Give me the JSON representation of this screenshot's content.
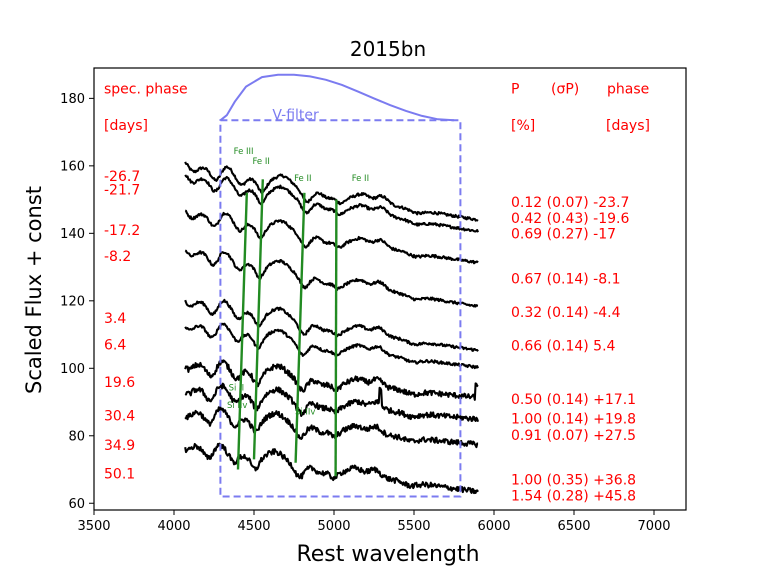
{
  "chart_data": {
    "type": "line",
    "title": "2015bn",
    "xlabel": "Rest wavelength",
    "ylabel": "Scaled Flux + const",
    "xlim": [
      3500,
      7200
    ],
    "ylim": [
      58,
      189
    ],
    "xticks": [
      3500,
      4000,
      4500,
      5000,
      5500,
      6000,
      6500,
      7000
    ],
    "yticks": [
      60,
      80,
      100,
      120,
      140,
      160,
      180
    ],
    "colors": {
      "text": "#ff0000",
      "lines": "#228b22",
      "filter": "#7b7bf0",
      "spectra": "#000000"
    },
    "left_header": [
      "spec. phase",
      "[days]"
    ],
    "left_phases": [
      {
        "label": "-26.7",
        "y": 155.5
      },
      {
        "label": "-21.7",
        "y": 151.5
      },
      {
        "label": "-17.2",
        "y": 139.5
      },
      {
        "label": "-8.2",
        "y": 131.8
      },
      {
        "label": "3.4",
        "y": 113.4
      },
      {
        "label": "6.4",
        "y": 105.5
      },
      {
        "label": "19.6",
        "y": 94.5
      },
      {
        "label": "30.4",
        "y": 84.5
      },
      {
        "label": "34.9",
        "y": 75.8
      },
      {
        "label": "50.1",
        "y": 67.3
      }
    ],
    "right_header": [
      "P",
      "(σP)",
      "phase",
      "[%]",
      "[days]"
    ],
    "right_rows": [
      {
        "label": "0.12 (0.07) -23.7",
        "y": 147.8
      },
      {
        "label": "0.42 (0.43) -19.6",
        "y": 143.1
      },
      {
        "label": "0.69 (0.27) -17",
        "y": 138.5
      },
      {
        "label": "0.67 (0.14) -8.1",
        "y": 125.1
      },
      {
        "label": "0.32 (0.14) -4.4",
        "y": 115.2
      },
      {
        "label": "0.66 (0.14) 5.4",
        "y": 105.2
      },
      {
        "label": "0.50 (0.14) +17.1",
        "y": 89.4
      },
      {
        "label": "1.00 (0.14) +19.8",
        "y": 83.6
      },
      {
        "label": "0.91 (0.07) +27.5",
        "y": 78.8
      },
      {
        "label": "1.00 (0.35) +36.8",
        "y": 65.6
      },
      {
        "label": "1.54 (0.28) +45.8",
        "y": 60.8
      }
    ],
    "filter_label": "V-filter",
    "filter_box": {
      "x0": 4290,
      "x1": 5790,
      "y0": 62,
      "y1": 173.5
    },
    "filter_curve": [
      [
        4290,
        173.5
      ],
      [
        4330,
        175
      ],
      [
        4380,
        179
      ],
      [
        4450,
        183.5
      ],
      [
        4550,
        186.3
      ],
      [
        4650,
        187
      ],
      [
        4750,
        187
      ],
      [
        4850,
        186.5
      ],
      [
        4950,
        185.5
      ],
      [
        5050,
        184
      ],
      [
        5150,
        182
      ],
      [
        5250,
        180
      ],
      [
        5350,
        178
      ],
      [
        5450,
        176.3
      ],
      [
        5550,
        174.8
      ],
      [
        5650,
        173.8
      ],
      [
        5750,
        173.5
      ]
    ],
    "line_annotations": [
      {
        "label": "Fe III",
        "x": 4435,
        "y": 163.5
      },
      {
        "label": "Fe II",
        "x": 4545,
        "y": 160.5
      },
      {
        "label": "Fe II",
        "x": 4805,
        "y": 155.5
      },
      {
        "label": "Fe II",
        "x": 5165,
        "y": 155.5
      },
      {
        "label": "Si II",
        "x": 4390,
        "y": 93.4
      },
      {
        "label": "Si IIv",
        "x": 4395,
        "y": 88.2
      },
      {
        "label": "Si IIv",
        "x": 4820,
        "y": 86.3
      }
    ],
    "green_lines": [
      [
        [
          4455,
          152
        ],
        [
          4400,
          70
        ]
      ],
      [
        [
          4555,
          156
        ],
        [
          4500,
          73
        ]
      ],
      [
        [
          4815,
          152
        ],
        [
          4760,
          72
        ]
      ],
      [
        [
          5015,
          150
        ],
        [
          5010,
          68
        ]
      ],
      [
        [
          4545,
          150
        ],
        [
          4545,
          150
        ]
      ]
    ],
    "spectra": [
      {
        "phase": "-26.7",
        "start": 161.5,
        "end": 144.0
      },
      {
        "phase": "-21.7",
        "start": 158.2,
        "end": 140.6
      },
      {
        "phase": "-17.2",
        "start": 147.5,
        "end": 131.3
      },
      {
        "phase": "-8.2",
        "start": 136.3,
        "end": 118.3
      },
      {
        "phase": "3.4",
        "start": 121.3,
        "end": 105.3
      },
      {
        "phase": "6.4",
        "start": 114.0,
        "end": 100.3
      },
      {
        "phase": "19.6",
        "start": 102.2,
        "end": 91.3
      },
      {
        "phase": "30.4",
        "start": 94.8,
        "end": 84.9
      },
      {
        "phase": "34.9",
        "start": 88.0,
        "end": 77.4
      },
      {
        "phase": "50.1",
        "start": 78.2,
        "end": 63.4
      }
    ]
  }
}
